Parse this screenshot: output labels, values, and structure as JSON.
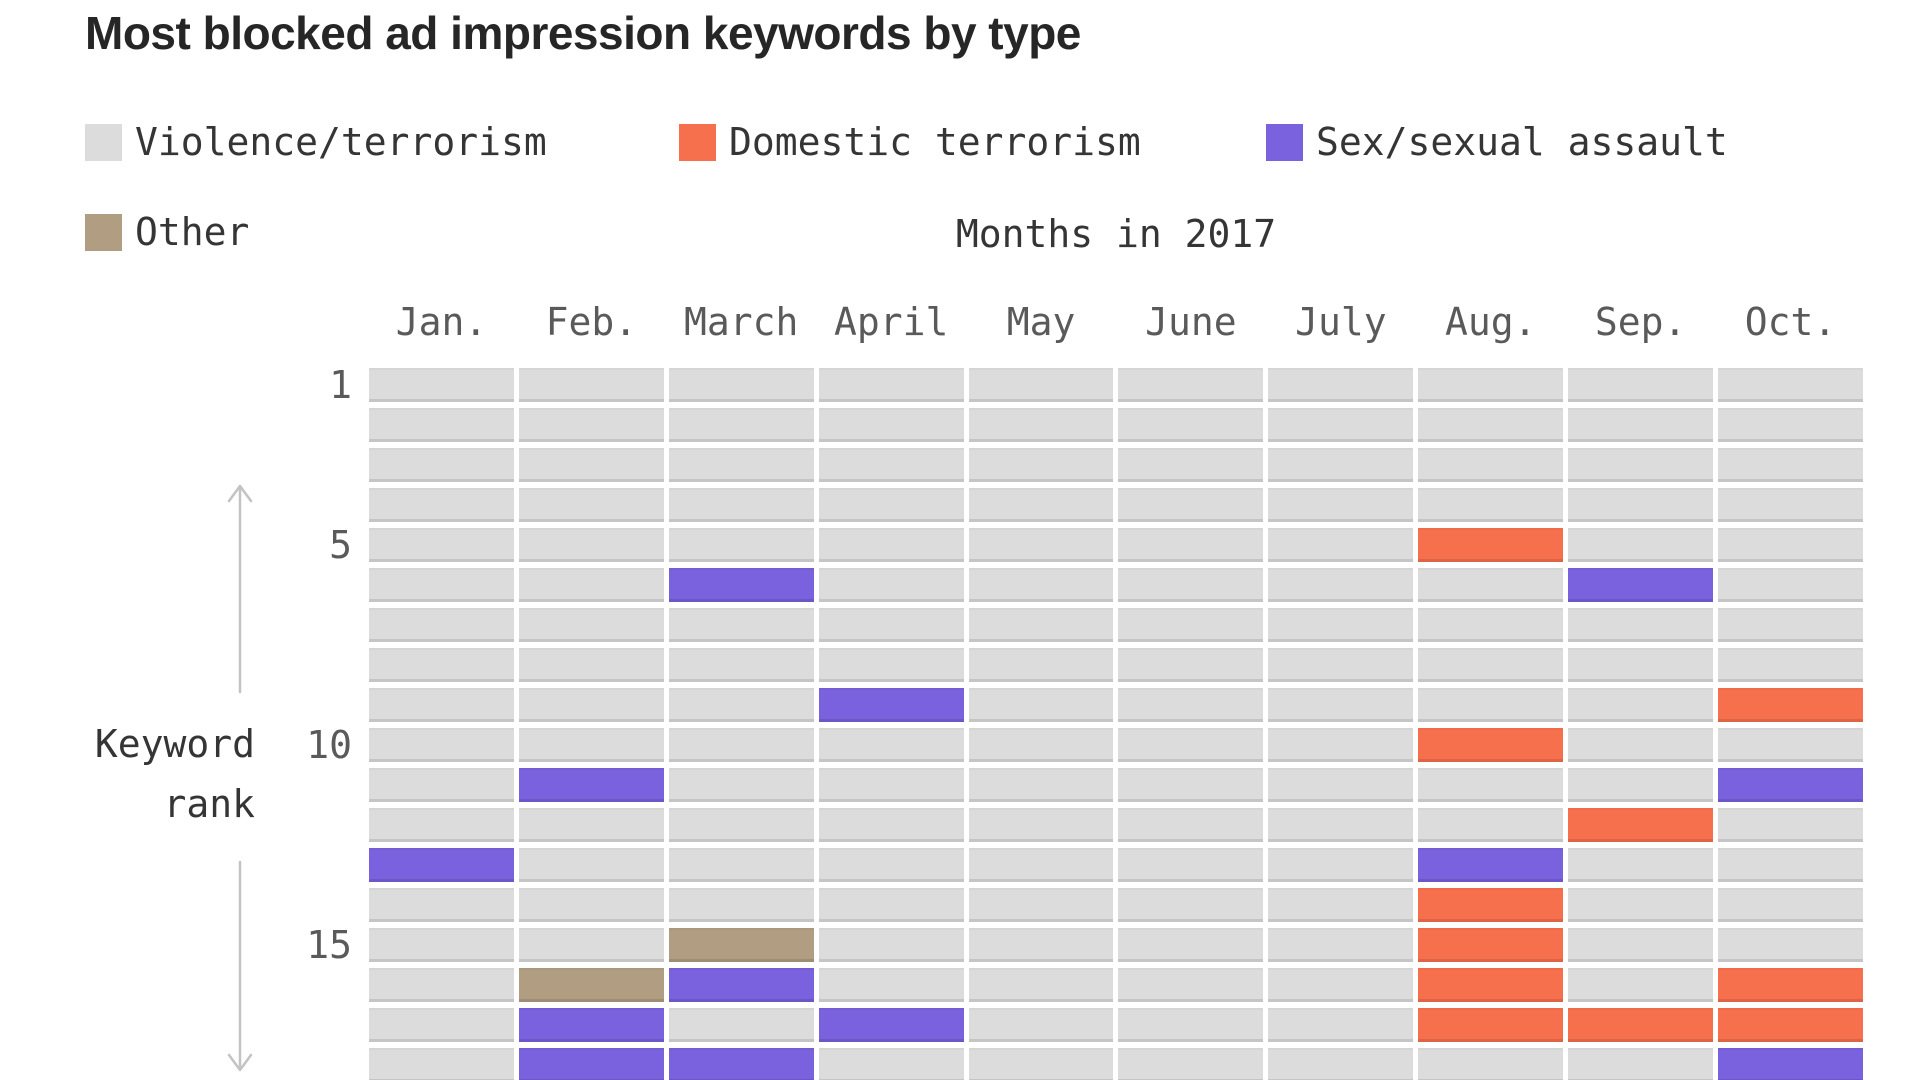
{
  "title": "Most blocked ad impression keywords by type",
  "legend": {
    "items": [
      {
        "label": "Violence/terrorism",
        "color": "#dcdcdc",
        "key": "V"
      },
      {
        "label": "Domestic terrorism",
        "color": "#f7704d",
        "key": "D"
      },
      {
        "label": "Sex/sexual assault",
        "color": "#7a61dd",
        "key": "S"
      },
      {
        "label": "Other",
        "color": "#b09d82",
        "key": "O"
      }
    ]
  },
  "axis": {
    "x_title": "Months in 2017",
    "y_title_line1": "Keyword",
    "y_title_line2": "rank",
    "y_ticks": [
      {
        "label": "1",
        "row": 1
      },
      {
        "label": "5",
        "row": 5
      },
      {
        "label": "10",
        "row": 10
      },
      {
        "label": "15",
        "row": 15
      }
    ]
  },
  "chart_data": {
    "type": "heatmap",
    "title": "Most blocked ad impression keywords by type",
    "xlabel": "Months in 2017",
    "ylabel": "Keyword rank",
    "legend_position": "top",
    "grid_on": false,
    "columns": [
      "Jan.",
      "Feb.",
      "March",
      "April",
      "May",
      "June",
      "July",
      "Aug.",
      "Sep.",
      "Oct."
    ],
    "rows": [
      1,
      2,
      3,
      4,
      5,
      6,
      7,
      8,
      9,
      10,
      11,
      12,
      13,
      14,
      15,
      16,
      17,
      18
    ],
    "categories": {
      "V": "Violence/terrorism",
      "D": "Domestic terrorism",
      "S": "Sex/sexual assault",
      "O": "Other"
    },
    "colors": {
      "V": "#dcdcdc",
      "D": "#f7704d",
      "S": "#7a61dd",
      "O": "#b09d82"
    },
    "grid": [
      "VVVVVVVVVV",
      "VVVVVVVVVV",
      "VVVVVVVVVV",
      "VVVVVVVVVV",
      "VVVVVVVDVV",
      "VVSVVVVVSV",
      "VVVVVVVVVV",
      "VVVVVVVVVV",
      "VVVSVVVVVD",
      "VVVVVVVDVV",
      "VSVVVVVVVS",
      "VVVVVVVVDV",
      "SVVVVVVSVV",
      "VVVVVVVDVV",
      "VVOVVVVDVV",
      "VOSVVVVDVD",
      "VSVSVVVDDD",
      "VSSVVVVVVS"
    ],
    "notes": "Each row is a keyword rank (1 = most blocked). Cell color encodes keyword category for that month and rank."
  }
}
